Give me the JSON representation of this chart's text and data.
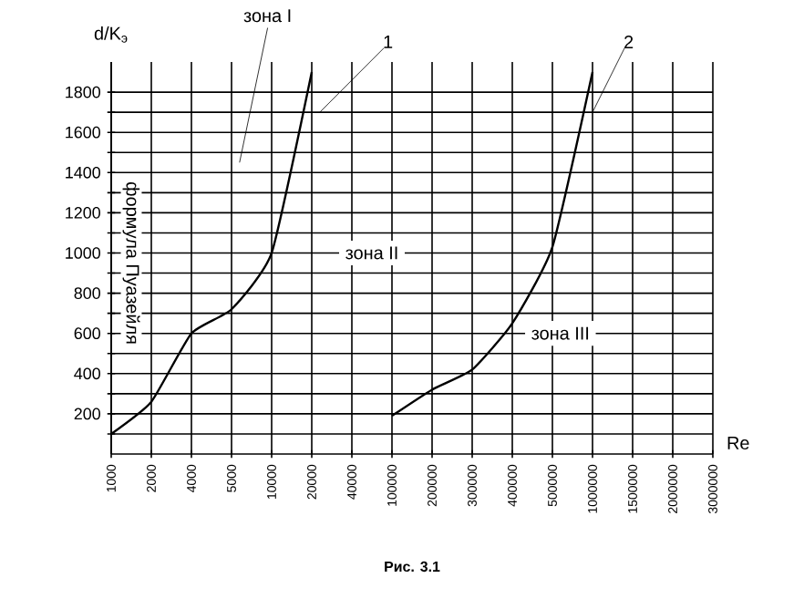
{
  "chart_data": {
    "type": "line",
    "xlabel": "Re",
    "ylabel": "d/K$_{э}$",
    "categories": [
      "1000",
      "2000",
      "4000",
      "5000",
      "10000",
      "20000",
      "40000",
      "100000",
      "200000",
      "300000",
      "400000",
      "500000",
      "1000000",
      "1500000",
      "2000000",
      "3000000"
    ],
    "series": [
      {
        "color": "#000000",
        "values": [
          100,
          260,
          600,
          720,
          1000,
          1900,
          null,
          null,
          null,
          null,
          null,
          null,
          null,
          null,
          null,
          null
        ]
      },
      {
        "color": "#000000",
        "values": [
          null,
          null,
          null,
          null,
          null,
          null,
          null,
          190,
          320,
          420,
          650,
          1030,
          1900,
          null,
          null,
          null
        ]
      }
    ],
    "ylim": [
      0,
      1950
    ],
    "yticks": [
      {
        "value": 100,
        "label": null
      },
      200,
      {
        "value": 300,
        "label": null
      },
      400,
      {
        "value": 500,
        "label": null
      },
      600,
      {
        "value": 700,
        "label": null
      },
      800,
      {
        "value": 900,
        "label": null
      },
      1000,
      {
        "value": 1100,
        "label": null
      },
      1200,
      {
        "value": 1300,
        "label": null
      },
      1400,
      {
        "value": 1500,
        "label": null
      },
      1600,
      {
        "value": 1700,
        "label": null
      },
      1800
    ],
    "grid": true,
    "annotations": [
      "зона I",
      "1",
      "зона II",
      "2",
      "зона III",
      "формула Пуазейля",
      "Рис. 3.1"
    ]
  }
}
